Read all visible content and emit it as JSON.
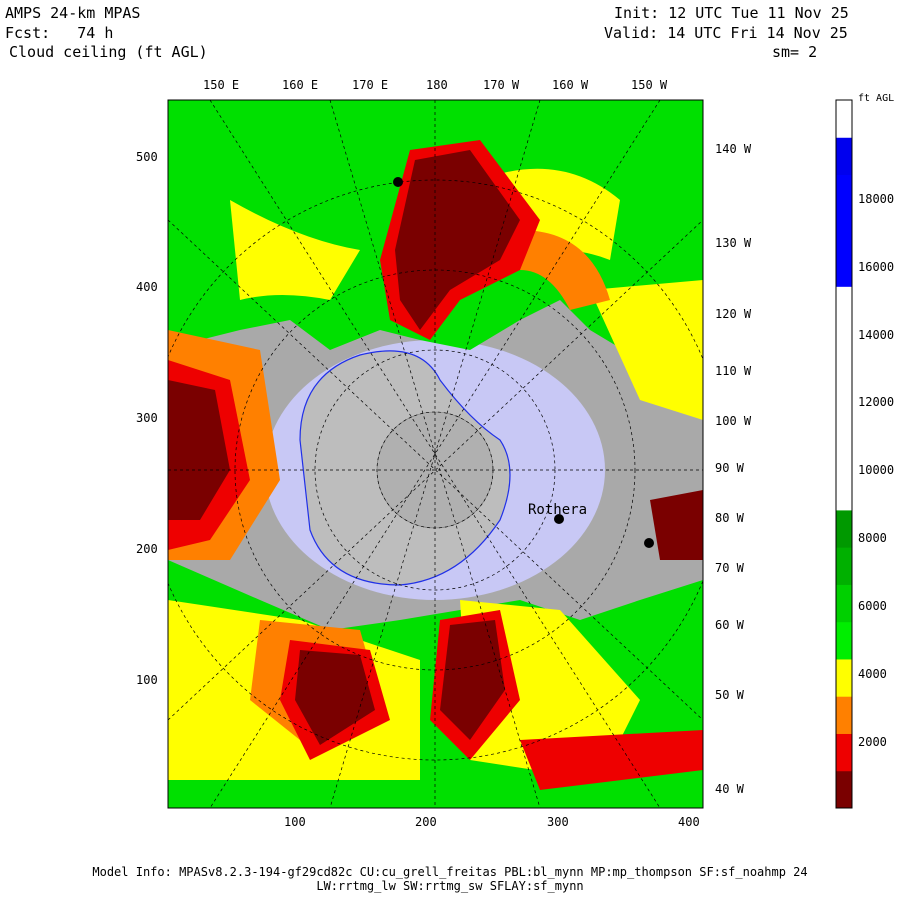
{
  "header": {
    "model": "AMPS 24-km MPAS",
    "fcst": "Fcst:   74 h",
    "field": "Cloud ceiling (ft AGL)",
    "init": "Init: 12 UTC Tue 11 Nov 25",
    "valid": "Valid: 14 UTC Fri 14 Nov 25",
    "smoothing": "sm= 2"
  },
  "map": {
    "x_axis_ticks": [
      "100",
      "200",
      "300",
      "400"
    ],
    "y_axis_ticks": [
      "100",
      "200",
      "300",
      "400",
      "500"
    ],
    "top_longitudes": [
      "150 E",
      "160 E",
      "170 E",
      "180",
      "170 W",
      "160 W",
      "150 W"
    ],
    "right_longitudes": [
      "140 W",
      "130 W",
      "120 W",
      "110 W",
      "100 W",
      "90 W",
      "80 W",
      "70 W",
      "60 W",
      "50 W",
      "40 W"
    ],
    "place_label": "Rothera",
    "land_color": "#a9a9a9",
    "ice_shelf_color": "#c8c8f5",
    "coast_color": "#2030e8"
  },
  "colorbar": {
    "unit": "ft AGL",
    "levels": [
      "2000",
      "4000",
      "6000",
      "8000",
      "10000",
      "12000",
      "14000",
      "16000",
      "18000"
    ],
    "colors": [
      "#7a0000",
      "#ee0000",
      "#ff8000",
      "#ffff00",
      "#00ee00",
      "#00d000",
      "#00b000",
      "#009900",
      "#ffffff",
      "#ffffff",
      "#ffffff",
      "#ffffff",
      "#ffffff",
      "#ffffff",
      "#0000ff",
      "#0000ff",
      "#0000ff",
      "#0000ee",
      "#ffffff"
    ]
  },
  "footer": {
    "line1": "Model Info: MPASv8.2.3-194-gf29cd82c CU:cu_grell_freitas PBL:bl_mynn MP:mp_thompson SF:sf_noahmp 24",
    "line2": "LW:rrtmg_lw SW:rrtmg_sw SFLAY:sf_mynn"
  }
}
